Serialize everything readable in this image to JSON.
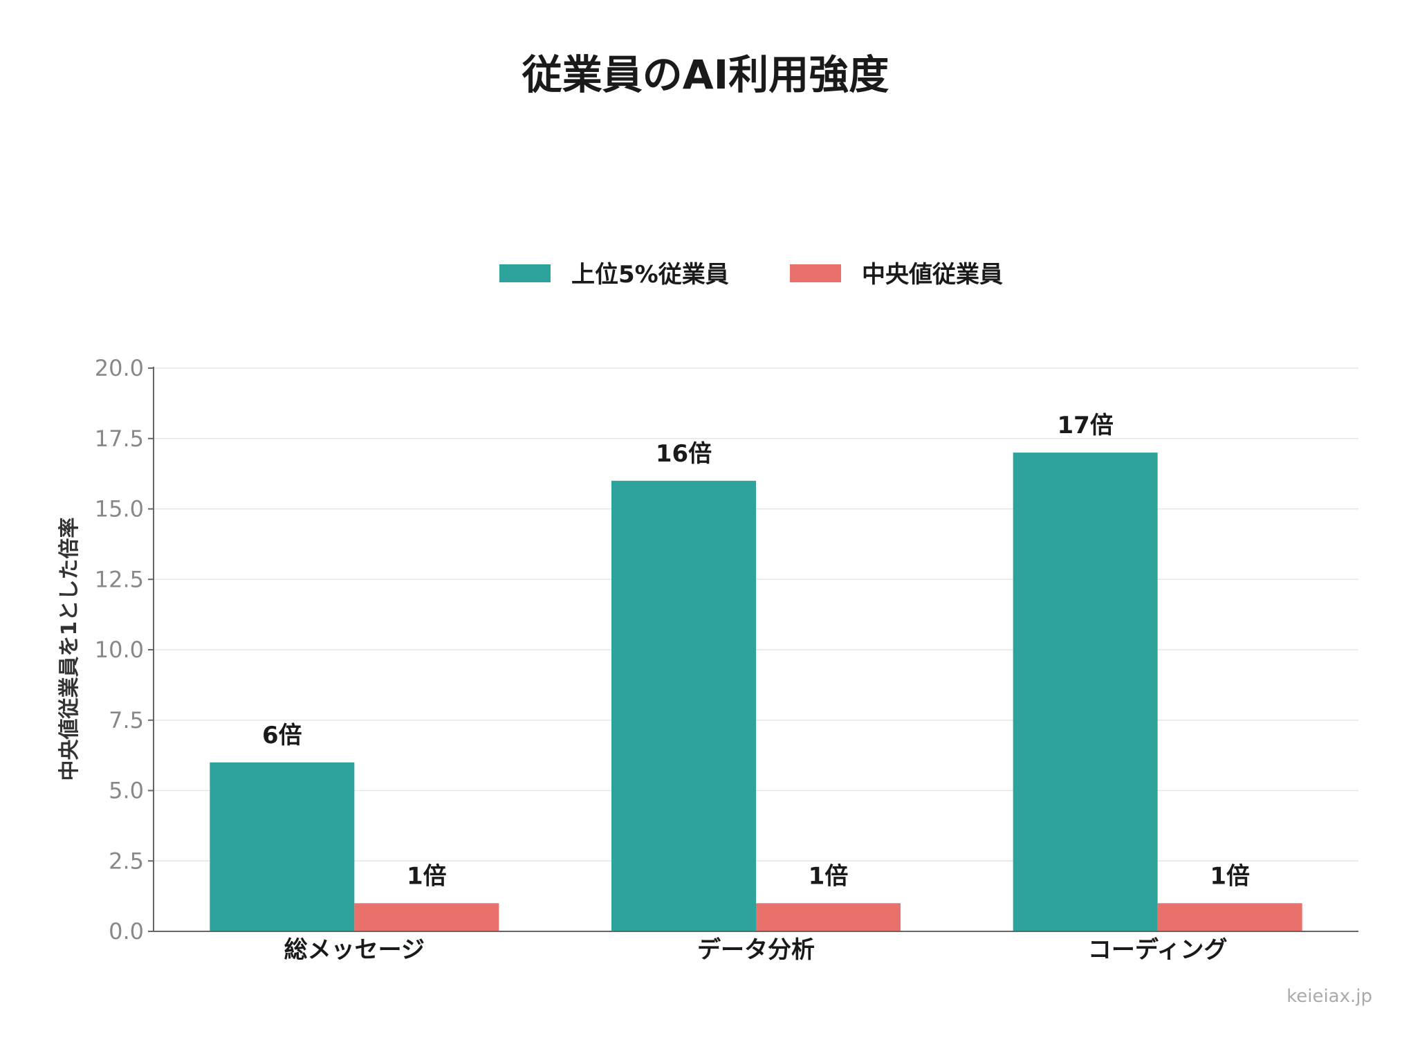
{
  "chart_data": {
    "type": "bar",
    "title": "従業員のAI利用強度",
    "ylabel": "中央値従業員を1とした倍率",
    "xlabel": "",
    "categories": [
      "総メッセージ",
      "データ分析",
      "コーディング"
    ],
    "series": [
      {
        "name": "上位5%従業員",
        "values": [
          6,
          16,
          17
        ],
        "labels": [
          "6倍",
          "16倍",
          "17倍"
        ],
        "color": "#2ea39b"
      },
      {
        "name": "中央値従業員",
        "values": [
          1,
          1,
          1
        ],
        "labels": [
          "1倍",
          "1倍",
          "1倍"
        ],
        "color": "#e8716b"
      }
    ],
    "ylim": [
      0,
      20
    ],
    "yticks": [
      "0.0",
      "2.5",
      "5.0",
      "7.5",
      "10.0",
      "12.5",
      "15.0",
      "17.5",
      "20.0"
    ],
    "grid": true,
    "legend_position": "top-center"
  },
  "watermark": "keieiax.jp"
}
